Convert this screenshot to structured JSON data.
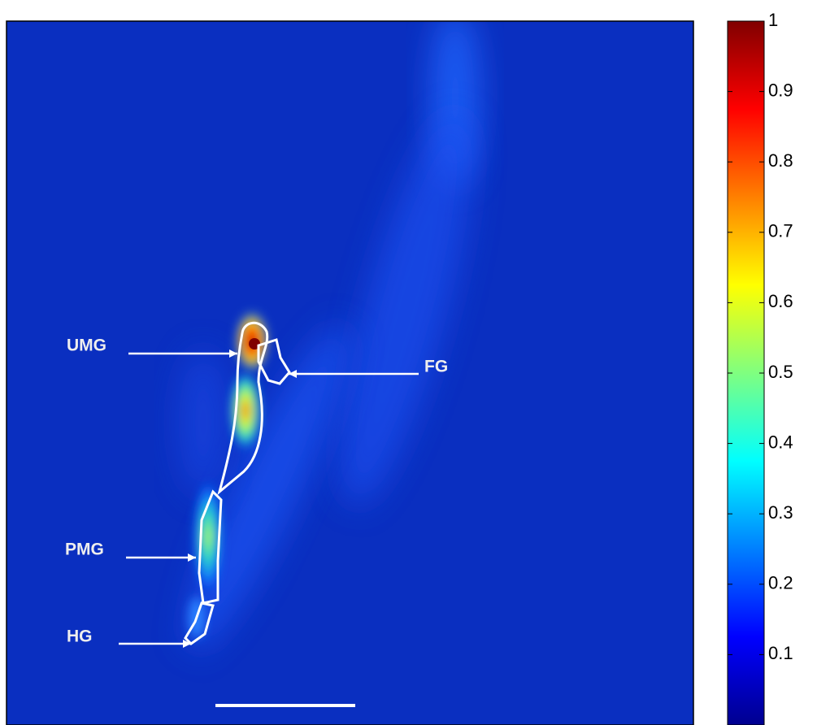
{
  "chart_data": {
    "type": "heatmap",
    "colormap": "jet",
    "clim": [
      0,
      1
    ],
    "cticks": [
      0.1,
      0.2,
      0.3,
      0.4,
      0.5,
      0.6,
      0.7,
      0.8,
      0.9,
      1
    ],
    "annotations": [
      "UMG",
      "FG",
      "PMG",
      "HG"
    ]
  }
}
